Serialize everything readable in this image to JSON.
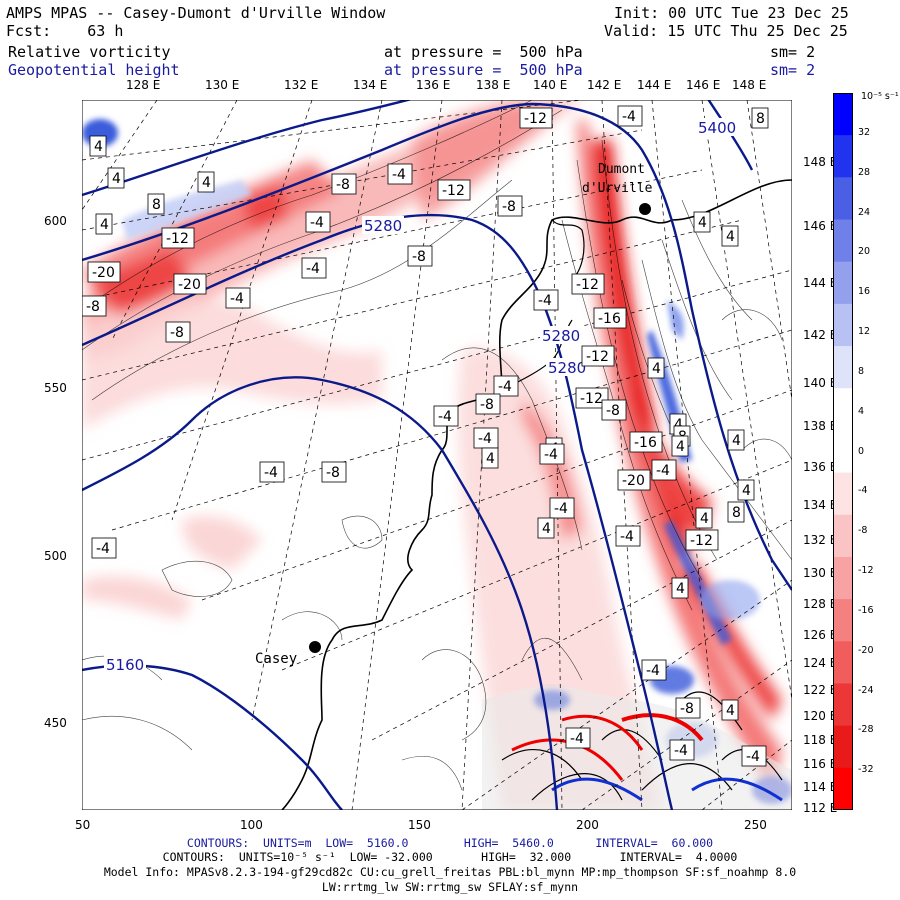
{
  "header": {
    "model_line": "AMPS MPAS -- Casey-Dumont d'Urville Window",
    "forecast_line": "Fcst:    63 h",
    "init_line": "Init: 00 UTC Tue 23 Dec 25",
    "valid_line": "Valid: 15 UTC Thu 25 Dec 25"
  },
  "fields": {
    "field1_name": "Relative vorticity",
    "field1_level": "at pressure =  500 hPa",
    "field1_sm": "sm= 2",
    "field2_name": "Geopotential height",
    "field2_level": "at pressure =  500 hPa",
    "field2_sm": "sm= 2"
  },
  "colors": {
    "height_contour": "#0b1a8a",
    "positive_max": "#ff0000",
    "negative_max": "#0000ff"
  },
  "top_longitudes": [
    "128 E",
    "130 E",
    "132 E",
    "134 E",
    "136 E",
    "138 E",
    "140 E",
    "142 E",
    "144 E",
    "146 E",
    "148 E"
  ],
  "right_latitudes": [
    "148 E",
    "146 E",
    "144 E",
    "142 E",
    "140 E",
    "138 E",
    "136 E",
    "134 E",
    "132 E",
    "130 E",
    "128 E",
    "126 E",
    "124 E",
    "122 E",
    "120 E",
    "118 E",
    "116 E",
    "114 E",
    "112 E"
  ],
  "y_ticks": [
    "600",
    "550",
    "500",
    "450"
  ],
  "x_ticks": [
    "50",
    "100",
    "150",
    "200",
    "250"
  ],
  "colorbar": {
    "unit_label": "10⁻⁵ s⁻¹",
    "tick_labels": [
      "32",
      "28",
      "24",
      "20",
      "16",
      "12",
      "8",
      "4",
      "0",
      "-4",
      "-8",
      "-12",
      "-16",
      "-20",
      "-24",
      "-28",
      "-32"
    ]
  },
  "stations": {
    "casey": "Casey",
    "dumont": [
      "Dumont",
      "d'Urville"
    ]
  },
  "height_labels": [
    "5400",
    "5280",
    "5280",
    "5280",
    "5160"
  ],
  "vort_labels": [
    "-12",
    "-4",
    "-4",
    "-8",
    "-12",
    "-8",
    "-4",
    "-12",
    "-20",
    "-20",
    "-8",
    "-12",
    "-8",
    "-4",
    "-4",
    "-8",
    "-4",
    "-4",
    "-12",
    "-16",
    "-12",
    "-8",
    "-16",
    "-8",
    "-4",
    "-20",
    "-4",
    "-4",
    "-8",
    "-4",
    "-4",
    "-4",
    "4",
    "4",
    "4",
    "4",
    "4",
    "4",
    "4",
    "4",
    "8",
    "8",
    "8",
    "4",
    "4",
    "4",
    "4",
    "8",
    "4",
    "4",
    "8",
    "4",
    "4",
    "4",
    "-4",
    "-4",
    "-4",
    "-4",
    "-4",
    "-4",
    "-8",
    "-12"
  ],
  "footer": {
    "line1": "CONTOURS:  UNITS=m  LOW=  5160.0        HIGH=  5460.0      INTERVAL=  60.000",
    "line2": "CONTOURS:  UNITS=10⁻⁵ s⁻¹  LOW= -32.000       HIGH=  32.000       INTERVAL=  4.0000",
    "line3": "Model Info: MPASv8.2.3-194-gf29cd82c CU:cu_grell_freitas PBL:bl_mynn MP:mp_thompson SF:sf_noahmp 8.0",
    "line4": "LW:rrtmg_lw SW:rrtmg_sw SFLAY:sf_mynn"
  }
}
